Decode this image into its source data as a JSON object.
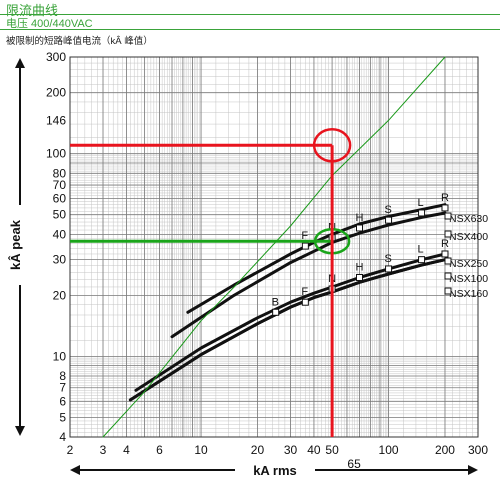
{
  "header": {
    "title": "限流曲线",
    "voltage": "电压 400/440VAC",
    "subtitle": "被限制的短路峰值电流（kÂ 峰值）"
  },
  "chart_data": {
    "type": "line",
    "xlabel": "kA rms",
    "ylabel": "kÂ peak",
    "x_scale": "log",
    "y_scale": "log",
    "xlim": [
      2,
      300
    ],
    "ylim": [
      4,
      300
    ],
    "grid": true,
    "x_ticks": [
      2,
      3,
      4,
      6,
      10,
      20,
      30,
      40,
      50,
      100,
      200,
      300
    ],
    "x_tick_labels": [
      "2",
      "3",
      "4",
      "6",
      "10",
      "20",
      "30",
      "40",
      "50",
      "100",
      "200",
      "300"
    ],
    "y_ticks": [
      4,
      5,
      6,
      7,
      8,
      10,
      20,
      30,
      40,
      50,
      60,
      70,
      80,
      100,
      146,
      200,
      300
    ],
    "y_tick_labels": [
      "4",
      "5",
      "6",
      "7",
      "8",
      "10",
      "20",
      "30",
      "40",
      "50",
      "60",
      "70",
      "80",
      "100",
      "146",
      "200",
      "300"
    ],
    "extra_label": {
      "text": "65",
      "x": 50
    },
    "series": [
      {
        "name": "NSX630",
        "color": "#111111",
        "x": [
          8.5,
          15,
          30,
          40,
          50,
          70,
          100,
          150,
          200
        ],
        "y": [
          16.5,
          22.5,
          32,
          36.5,
          40,
          45,
          49,
          53,
          56
        ]
      },
      {
        "name": "NSX400",
        "color": "#111111",
        "x": [
          7,
          15,
          30,
          40,
          50,
          70,
          100,
          150,
          200
        ],
        "y": [
          12.5,
          20,
          29,
          33,
          36.5,
          40.5,
          44.5,
          48.5,
          51
        ]
      },
      {
        "name": "NSX250",
        "color": "#111111",
        "x": [
          4.5,
          10,
          20,
          30,
          40,
          50,
          70,
          100,
          150,
          200
        ],
        "y": [
          6.8,
          11,
          15.5,
          18.5,
          20.5,
          22,
          24.5,
          27,
          30,
          32
        ]
      },
      {
        "name": "NSX100",
        "color": "#111111",
        "x": [
          4.2,
          10,
          20,
          30,
          40,
          50,
          70,
          100,
          150,
          200
        ],
        "y": [
          6.1,
          10.2,
          14.5,
          17.5,
          19.5,
          20.8,
          23.2,
          25.5,
          28.2,
          30
        ]
      },
      {
        "name": "NSX160",
        "color": "#111111",
        "x": [
          4.2,
          10,
          20,
          30,
          40,
          50,
          70,
          100,
          150,
          200
        ],
        "y": [
          6.1,
          10.2,
          14.5,
          17.5,
          19.5,
          20.8,
          23.2,
          25.5,
          28.2,
          30
        ]
      },
      {
        "name": "",
        "color": "#1a9a1a",
        "x": [
          3,
          5,
          10,
          15,
          30,
          50,
          100,
          200
        ],
        "y": [
          4,
          6.7,
          15,
          22,
          44,
          78,
          146,
          300
        ]
      }
    ],
    "markers": [
      {
        "label": "B",
        "x": 25,
        "y": 16.5
      },
      {
        "label": "F",
        "x": 36,
        "y": 18.5
      },
      {
        "label": "N",
        "x": 50,
        "y": 21.5
      },
      {
        "label": "H",
        "x": 70,
        "y": 24.5
      },
      {
        "label": "S",
        "x": 100,
        "y": 27
      },
      {
        "label": "L",
        "x": 150,
        "y": 30
      },
      {
        "label": "R",
        "x": 200,
        "y": 32
      },
      {
        "label": "F",
        "x": 36,
        "y": 35
      },
      {
        "label": "N",
        "x": 50,
        "y": 38.5
      },
      {
        "label": "H",
        "x": 70,
        "y": 43
      },
      {
        "label": "S",
        "x": 100,
        "y": 47
      },
      {
        "label": "L",
        "x": 150,
        "y": 51
      },
      {
        "label": "R",
        "x": 200,
        "y": 54
      }
    ],
    "annotations": [
      {
        "color": "#e8141e",
        "x": 50,
        "y": 110,
        "meaning": "red reading: 50 kA rms → 110 kÂ peak"
      },
      {
        "color": "#1aa51a",
        "x": 50,
        "y": 37,
        "meaning": "green reading: 50 kA rms → 37 kÂ peak"
      }
    ]
  }
}
